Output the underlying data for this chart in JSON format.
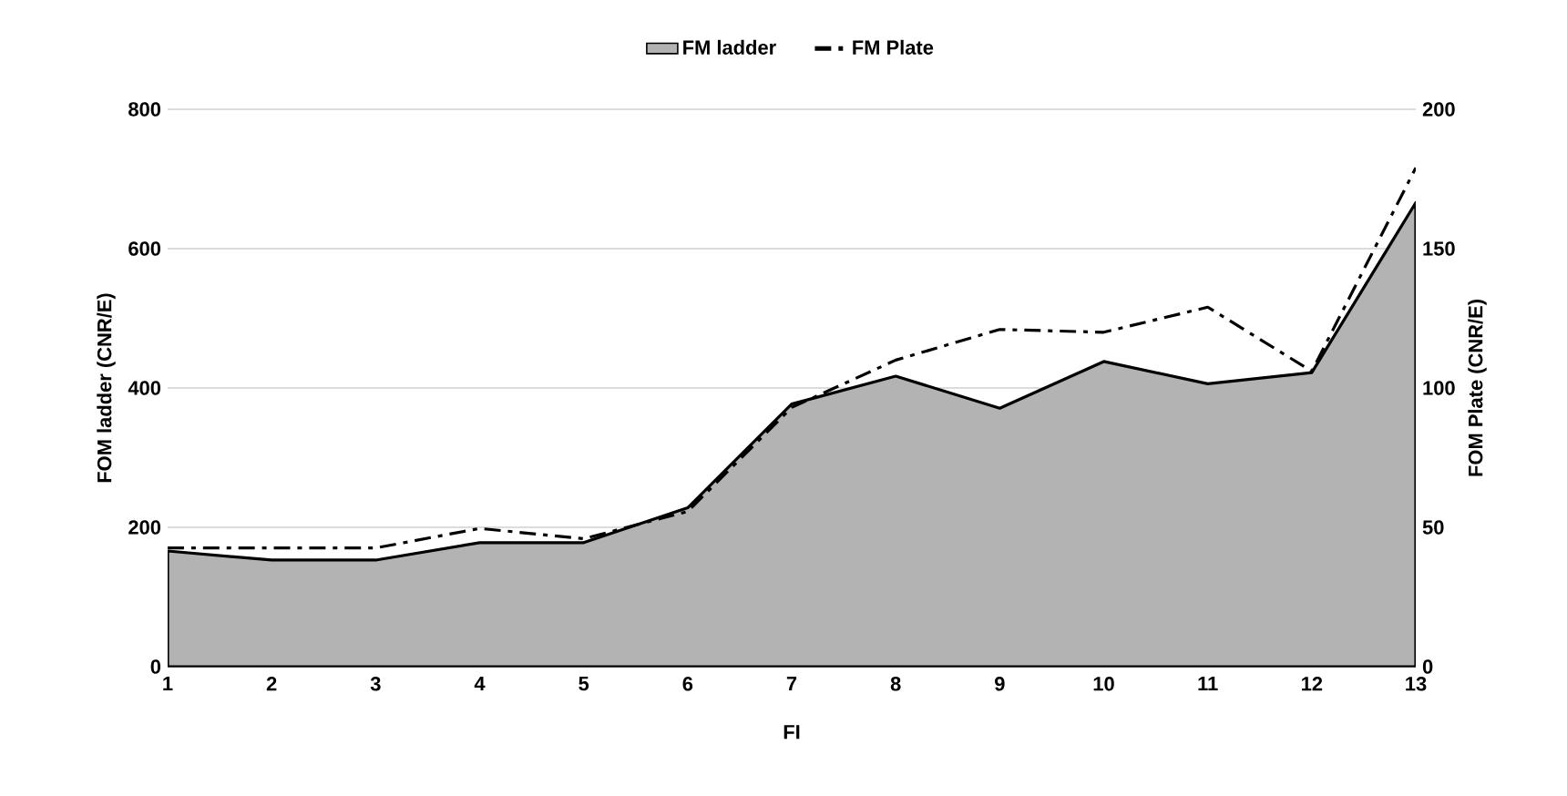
{
  "chart_data": {
    "type": "area",
    "xlabel": "FI",
    "ylabel": "FOM ladder (CNR/E)",
    "y2label": "FOM Plate (CNR/E)",
    "x": [
      1,
      2,
      3,
      4,
      5,
      6,
      7,
      8,
      9,
      10,
      11,
      12,
      13
    ],
    "series": [
      {
        "name": "FM ladder",
        "color": "#b3b3b3",
        "line_style": "solid",
        "values": [
          166,
          153,
          153,
          178,
          178,
          228,
          377,
          417,
          371,
          438,
          406,
          422,
          666
        ]
      },
      {
        "name": "FM Plate",
        "type": "line",
        "axis": "y2",
        "color": "#000000",
        "line_style": "dashed",
        "values": [
          42.6,
          42.6,
          42.6,
          49.6,
          45.9,
          55.7,
          93,
          110,
          121,
          120,
          129,
          106,
          179
        ]
      }
    ],
    "xlim": [
      1,
      13
    ],
    "xticks": [
      1,
      2,
      3,
      4,
      5,
      6,
      7,
      8,
      9,
      10,
      11,
      12,
      13
    ],
    "ylim": [
      0,
      800
    ],
    "yticks": [
      0,
      200,
      400,
      600,
      800
    ],
    "y2lim": [
      0,
      200
    ],
    "y2ticks": [
      0,
      50,
      100,
      150,
      200
    ],
    "grid": "y",
    "legend": "top"
  }
}
